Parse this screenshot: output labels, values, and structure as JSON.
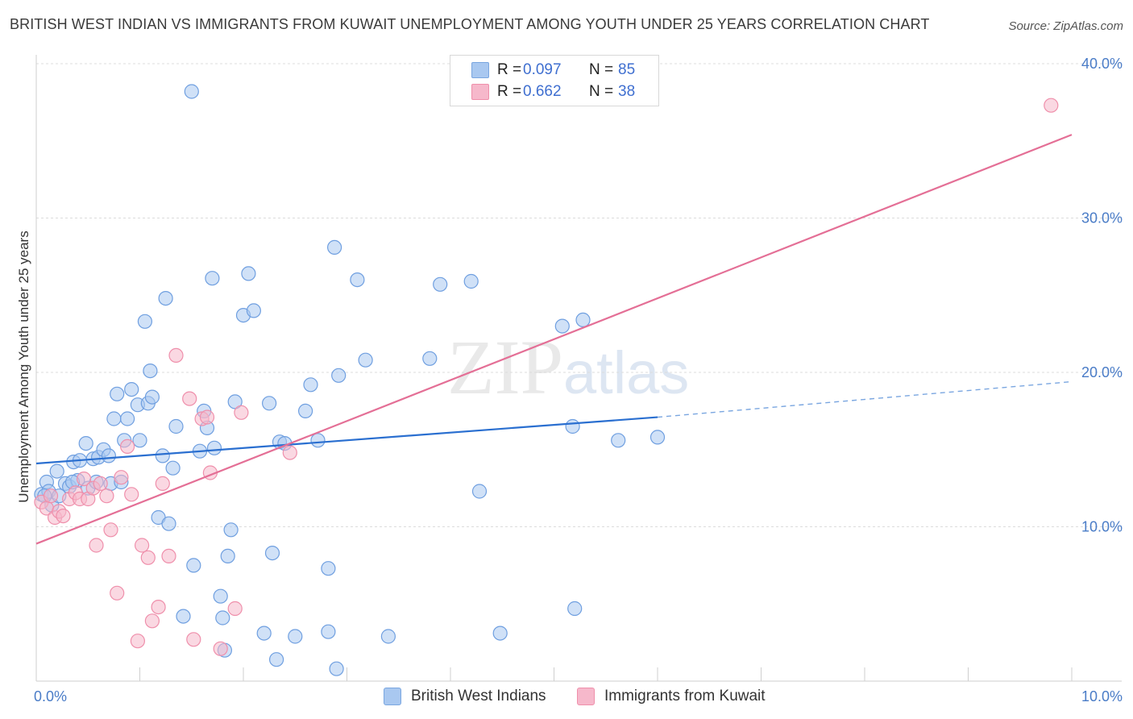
{
  "title": "BRITISH WEST INDIAN VS IMMIGRANTS FROM KUWAIT UNEMPLOYMENT AMONG YOUTH UNDER 25 YEARS CORRELATION CHART",
  "source": "Source: ZipAtlas.com",
  "watermark": {
    "zip": "ZIP",
    "atlas": "atlas"
  },
  "legend": {
    "rows": [
      {
        "r_label": "R =",
        "r_value": "0.097",
        "n_label": "N =",
        "n_value": "85",
        "color": "#a9c8f0"
      },
      {
        "r_label": "R =",
        "r_value": "0.662",
        "n_label": "N =",
        "n_value": "38",
        "color": "#f6b8cb"
      }
    ]
  },
  "bottom_legend": [
    {
      "label": "British West Indians",
      "color": "#a9c8f0"
    },
    {
      "label": "Immigrants from Kuwait",
      "color": "#f6b8cb"
    }
  ],
  "chart_data": {
    "type": "scatter",
    "title": "BRITISH WEST INDIAN VS IMMIGRANTS FROM KUWAIT UNEMPLOYMENT AMONG YOUTH UNDER 25 YEARS CORRELATION CHART",
    "xlabel": "",
    "ylabel": "Unemployment Among Youth under 25 years",
    "xlim": [
      0,
      10
    ],
    "ylim": [
      0,
      40
    ],
    "x_tick_labels": [
      {
        "value": 0,
        "label": "0.0%"
      },
      {
        "value": 10,
        "label": "10.0%"
      }
    ],
    "y_tick_labels": [
      {
        "value": 10,
        "label": "10.0%"
      },
      {
        "value": 20,
        "label": "20.0%"
      },
      {
        "value": 30,
        "label": "30.0%"
      },
      {
        "value": 40,
        "label": "40.0%"
      }
    ],
    "grid": true,
    "series": [
      {
        "name": "British West Indians",
        "color": "#6f9fe0",
        "fill": "#a9c8f0",
        "trend": {
          "x_start": 0.0,
          "y_start": 14.1,
          "x_solid_end": 6.0,
          "y_solid_end": 17.1,
          "x_dash_end": 10.0,
          "y_dash_end": 19.4
        },
        "points": [
          [
            0.05,
            12.1
          ],
          [
            0.1,
            12.9
          ],
          [
            0.12,
            12.3
          ],
          [
            0.15,
            11.4
          ],
          [
            0.2,
            13.6
          ],
          [
            0.22,
            12.0
          ],
          [
            0.28,
            12.8
          ],
          [
            0.32,
            12.6
          ],
          [
            0.36,
            14.2
          ],
          [
            0.4,
            13.0
          ],
          [
            0.42,
            14.3
          ],
          [
            0.48,
            15.4
          ],
          [
            0.5,
            12.5
          ],
          [
            0.55,
            14.4
          ],
          [
            0.58,
            12.9
          ],
          [
            0.6,
            14.5
          ],
          [
            0.65,
            15.0
          ],
          [
            0.7,
            14.6
          ],
          [
            0.72,
            12.8
          ],
          [
            0.75,
            17.0
          ],
          [
            0.78,
            18.6
          ],
          [
            0.82,
            12.9
          ],
          [
            0.85,
            15.6
          ],
          [
            0.88,
            17.0
          ],
          [
            0.92,
            18.9
          ],
          [
            0.98,
            17.9
          ],
          [
            1.0,
            15.6
          ],
          [
            1.05,
            23.3
          ],
          [
            1.08,
            18.0
          ],
          [
            1.1,
            20.1
          ],
          [
            1.12,
            18.4
          ],
          [
            1.18,
            10.6
          ],
          [
            1.22,
            14.6
          ],
          [
            1.25,
            24.8
          ],
          [
            1.28,
            10.2
          ],
          [
            1.32,
            13.8
          ],
          [
            1.35,
            16.5
          ],
          [
            1.42,
            4.2
          ],
          [
            1.5,
            38.2
          ],
          [
            1.52,
            7.5
          ],
          [
            1.58,
            14.9
          ],
          [
            1.62,
            17.5
          ],
          [
            1.65,
            16.4
          ],
          [
            1.7,
            26.1
          ],
          [
            1.72,
            15.1
          ],
          [
            1.78,
            5.5
          ],
          [
            1.8,
            4.1
          ],
          [
            1.82,
            2.0
          ],
          [
            1.85,
            8.1
          ],
          [
            1.88,
            9.8
          ],
          [
            1.92,
            18.1
          ],
          [
            2.0,
            23.7
          ],
          [
            2.05,
            26.4
          ],
          [
            2.1,
            24.0
          ],
          [
            2.2,
            3.1
          ],
          [
            2.25,
            18.0
          ],
          [
            2.28,
            8.3
          ],
          [
            2.32,
            1.4
          ],
          [
            2.35,
            15.5
          ],
          [
            2.4,
            15.4
          ],
          [
            2.5,
            2.9
          ],
          [
            2.6,
            17.5
          ],
          [
            2.65,
            19.2
          ],
          [
            2.72,
            15.6
          ],
          [
            2.82,
            7.3
          ],
          [
            2.82,
            3.2
          ],
          [
            2.88,
            28.1
          ],
          [
            2.9,
            0.8
          ],
          [
            2.92,
            19.8
          ],
          [
            3.1,
            26.0
          ],
          [
            3.18,
            20.8
          ],
          [
            3.4,
            2.9
          ],
          [
            3.8,
            20.9
          ],
          [
            3.9,
            25.7
          ],
          [
            4.2,
            25.9
          ],
          [
            4.28,
            12.3
          ],
          [
            4.48,
            3.1
          ],
          [
            5.2,
            4.7
          ],
          [
            5.08,
            23.0
          ],
          [
            5.28,
            23.4
          ],
          [
            5.18,
            16.5
          ],
          [
            5.62,
            15.6
          ],
          [
            6.0,
            15.8
          ],
          [
            0.08,
            12.0
          ],
          [
            0.35,
            12.9
          ]
        ]
      },
      {
        "name": "Immigrants from Kuwait",
        "color": "#ef8fab",
        "fill": "#f6b8cb",
        "trend": {
          "x_start": 0.0,
          "y_start": 8.9,
          "x_end": 10.0,
          "y_end": 35.4
        },
        "points": [
          [
            0.05,
            11.6
          ],
          [
            0.1,
            11.2
          ],
          [
            0.14,
            12.0
          ],
          [
            0.18,
            10.6
          ],
          [
            0.22,
            11.0
          ],
          [
            0.26,
            10.7
          ],
          [
            0.32,
            11.8
          ],
          [
            0.38,
            12.2
          ],
          [
            0.42,
            11.8
          ],
          [
            0.46,
            13.1
          ],
          [
            0.5,
            11.8
          ],
          [
            0.55,
            12.5
          ],
          [
            0.58,
            8.8
          ],
          [
            0.62,
            12.8
          ],
          [
            0.68,
            12.0
          ],
          [
            0.72,
            9.8
          ],
          [
            0.78,
            5.7
          ],
          [
            0.82,
            13.2
          ],
          [
            0.88,
            15.2
          ],
          [
            0.92,
            12.1
          ],
          [
            0.98,
            2.6
          ],
          [
            1.02,
            8.8
          ],
          [
            1.08,
            8.0
          ],
          [
            1.12,
            3.9
          ],
          [
            1.18,
            4.8
          ],
          [
            1.22,
            12.8
          ],
          [
            1.28,
            8.1
          ],
          [
            1.35,
            21.1
          ],
          [
            1.48,
            18.3
          ],
          [
            1.52,
            2.7
          ],
          [
            1.6,
            17.0
          ],
          [
            1.65,
            17.1
          ],
          [
            1.68,
            13.5
          ],
          [
            1.78,
            2.1
          ],
          [
            1.92,
            4.7
          ],
          [
            1.98,
            17.4
          ],
          [
            2.45,
            14.8
          ],
          [
            9.8,
            37.3
          ]
        ]
      }
    ]
  }
}
